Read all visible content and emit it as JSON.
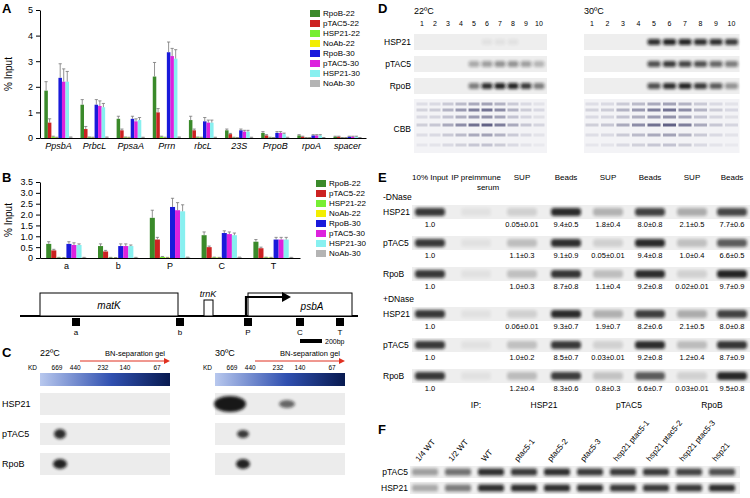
{
  "chart_data": [
    {
      "type": "bar",
      "ylabel": "% Input",
      "categories": [
        "PpsbA",
        "PrbcL",
        "PpsaA",
        "Prrn",
        "rbcL",
        "23S",
        "PrpoB",
        "rpoA",
        "spacer"
      ],
      "ylim": [
        0,
        5
      ],
      "yticks": [
        0,
        1,
        2,
        3,
        4,
        5
      ],
      "grid": false,
      "legend": "upper right",
      "series": [
        {
          "name": "RpoB-22",
          "color": "#3a8a2a",
          "values": [
            1.85,
            1.3,
            0.75,
            2.4,
            0.7,
            0.3,
            0.2,
            0.1,
            0.05
          ],
          "errors": [
            0.35,
            0.2,
            0.1,
            0.55,
            0.15,
            0.05,
            0.05,
            0.03,
            0.02
          ]
        },
        {
          "name": "pTAC5-22",
          "color": "#cc2222",
          "values": [
            0.6,
            0.35,
            0.3,
            1.0,
            0.3,
            0.15,
            0.1,
            0.05,
            0.05
          ],
          "errors": [
            0.15,
            0.1,
            0.05,
            0.15,
            0.05,
            0.03,
            0.03,
            0.02,
            0.02
          ]
        },
        {
          "name": "HSP21-22",
          "color": "#77ee33",
          "values": [
            0.05,
            0.03,
            0.03,
            0.05,
            0.03,
            0.02,
            0.02,
            0.01,
            0.01
          ],
          "errors": [
            0.02,
            0.01,
            0.01,
            0.02,
            0.01,
            0.01,
            0.01,
            0.01,
            0.01
          ]
        },
        {
          "name": "NoAb-22",
          "color": "#f2ee00",
          "values": [
            0.02,
            0.02,
            0.02,
            0.02,
            0.02,
            0.01,
            0.01,
            0.01,
            0.01
          ],
          "errors": [
            0.01,
            0.01,
            0.01,
            0.01,
            0.01,
            0.01,
            0.01,
            0.01,
            0.01
          ]
        },
        {
          "name": "RpoB-30",
          "color": "#1a1adb",
          "values": [
            2.35,
            1.3,
            0.75,
            3.35,
            0.65,
            0.3,
            0.2,
            0.1,
            0.05
          ],
          "errors": [
            0.55,
            0.2,
            0.1,
            0.4,
            0.15,
            0.05,
            0.05,
            0.03,
            0.02
          ]
        },
        {
          "name": "pTAC5-30",
          "color": "#dd22dd",
          "values": [
            2.2,
            1.25,
            0.65,
            3.2,
            0.6,
            0.25,
            0.2,
            0.1,
            0.05
          ],
          "errors": [
            0.5,
            0.2,
            0.1,
            0.3,
            0.1,
            0.05,
            0.05,
            0.03,
            0.02
          ]
        },
        {
          "name": "HSP21-30",
          "color": "#88f0f0",
          "values": [
            2.2,
            1.2,
            0.7,
            3.1,
            0.6,
            0.25,
            0.15,
            0.1,
            0.05
          ],
          "errors": [
            0.4,
            0.15,
            0.1,
            0.35,
            0.1,
            0.05,
            0.04,
            0.03,
            0.02
          ]
        },
        {
          "name": "NoAb-30",
          "color": "#b4b4b4",
          "values": [
            0.03,
            0.03,
            0.02,
            0.03,
            0.02,
            0.02,
            0.02,
            0.01,
            0.01
          ],
          "errors": [
            0.01,
            0.01,
            0.01,
            0.01,
            0.01,
            0.01,
            0.01,
            0.01,
            0.01
          ]
        }
      ]
    },
    {
      "type": "bar",
      "ylabel": "% Input",
      "categories": [
        "a",
        "b",
        "P",
        "C",
        "T"
      ],
      "ylim": [
        0,
        3.5
      ],
      "yticks": [
        0,
        0.5,
        {
          "value": 1,
          "label": "1.0"
        },
        1.5,
        {
          "value": 2,
          "label": "2.0"
        },
        2.5,
        {
          "value": 3,
          "label": "3.0"
        },
        3.5
      ],
      "grid": false,
      "legend": "upper right",
      "series": [
        {
          "name": "RpoB-22",
          "color": "#3a8a2a",
          "values": [
            0.65,
            0.55,
            1.85,
            1.05,
            0.75
          ],
          "errors": [
            0.1,
            0.1,
            0.35,
            0.15,
            0.1
          ]
        },
        {
          "name": "pTAC5-22",
          "color": "#cc2222",
          "values": [
            0.35,
            0.3,
            0.85,
            0.5,
            0.45
          ],
          "errors": [
            0.05,
            0.05,
            0.1,
            0.05,
            0.05
          ]
        },
        {
          "name": "HSP21-22",
          "color": "#77ee33",
          "values": [
            0.02,
            0.02,
            0.05,
            0.03,
            0.03
          ],
          "errors": [
            0.01,
            0.01,
            0.02,
            0.01,
            0.01
          ]
        },
        {
          "name": "NoAb-22",
          "color": "#f2ee00",
          "values": [
            0.01,
            0.01,
            0.02,
            0.02,
            0.02
          ],
          "errors": [
            0.01,
            0.01,
            0.01,
            0.01,
            0.01
          ]
        },
        {
          "name": "RpoB-30",
          "color": "#1a1adb",
          "values": [
            0.65,
            0.55,
            2.35,
            1.15,
            0.85
          ],
          "errors": [
            0.1,
            0.1,
            0.4,
            0.1,
            0.1
          ]
        },
        {
          "name": "pTAC5-30",
          "color": "#dd22dd",
          "values": [
            0.6,
            0.55,
            2.2,
            1.1,
            0.85
          ],
          "errors": [
            0.1,
            0.1,
            0.35,
            0.1,
            0.1
          ]
        },
        {
          "name": "HSP21-30",
          "color": "#88f0f0",
          "values": [
            0.6,
            0.55,
            2.15,
            1.05,
            0.85
          ],
          "errors": [
            0.05,
            0.05,
            0.3,
            0.1,
            0.1
          ]
        },
        {
          "name": "NoAb-30",
          "color": "#b4b4b4",
          "values": [
            0.02,
            0.02,
            0.03,
            0.03,
            0.02
          ],
          "errors": [
            0.01,
            0.01,
            0.01,
            0.01,
            0.01
          ]
        }
      ]
    }
  ],
  "panel_labels": [
    "A",
    "B",
    "C",
    "D",
    "E",
    "F"
  ],
  "gene_map": {
    "genes": [
      "matK",
      "trnK",
      "psbA"
    ],
    "regions": [
      "a",
      "b",
      "P",
      "C",
      "T"
    ],
    "scale_bar": "200bp"
  },
  "panel_c": {
    "conditions": [
      "22ºC",
      "30ºC"
    ],
    "gel_label": "BN-separation gel",
    "kd_label": "KD",
    "markers": [
      669,
      440,
      232,
      140,
      67
    ],
    "rows": [
      "HSP21",
      "pTAC5",
      "RpoB"
    ]
  },
  "panel_d": {
    "conditions": [
      "22ºC",
      "30ºC"
    ],
    "lanes": [
      1,
      2,
      3,
      4,
      5,
      6,
      7,
      8,
      9,
      10
    ],
    "rows": [
      "HSP21",
      "pTAC5",
      "RpoB",
      "CBB"
    ]
  },
  "panel_e": {
    "headers": [
      [
        "10% Input"
      ],
      [
        "IP preimmune",
        "serum"
      ],
      [
        "SUP"
      ],
      [
        "Beads"
      ],
      [
        "SUP"
      ],
      [
        "Beads"
      ],
      [
        "SUP"
      ],
      [
        "Beads"
      ]
    ],
    "sections": [
      {
        "label": "-DNase",
        "rows": [
          {
            "name": "HSP21",
            "values": [
              "1.0",
              null,
              "0.05±0.01",
              "9.4±0.5",
              "1.8±0.4",
              "8.0±0.8",
              "2.1±0.5",
              "7.7±0.6"
            ]
          },
          {
            "name": "pTAC5",
            "values": [
              "1.0",
              null,
              "1.1±0.3",
              "9.1±0.9",
              "0.05±0.01",
              "9.4±0.8",
              "1.0±0.4",
              "6.6±0.5"
            ]
          },
          {
            "name": "RpoB",
            "values": [
              "1.0",
              null,
              "1.0±0.3",
              "8.7±0.8",
              "1.1±0.4",
              "9.2±0.8",
              "0.02±0.01",
              "9.7±0.9"
            ]
          }
        ]
      },
      {
        "label": "+DNase",
        "rows": [
          {
            "name": "HSP21",
            "values": [
              "1.0",
              null,
              "0.06±0.01",
              "9.3±0.7",
              "1.9±0.7",
              "8.2±0.6",
              "2.1±0.5",
              "8.0±0.8"
            ]
          },
          {
            "name": "pTAC5",
            "values": [
              "1.0",
              null,
              "1.0±0.2",
              "8.5±0.7",
              "0.03±0.01",
              "9.2±0.8",
              "1.2±0.4",
              "8.7±0.9"
            ]
          },
          {
            "name": "RpoB",
            "values": [
              "1.0",
              null,
              "1.2±0.4",
              "8.3±0.6",
              "0.8±0.3",
              "6.6±0.7",
              "0.03±0.01",
              "9.5±0.8"
            ]
          }
        ]
      }
    ],
    "ip_label": "IP:",
    "ip_targets": [
      "HSP21",
      "pTAC5",
      "RpoB"
    ]
  },
  "panel_f": {
    "lanes": [
      "1/4 WT",
      "1/2 WT",
      "WT",
      "ptac5-1",
      "ptac5-2",
      "ptac5-3",
      "hsp21 ptac5-1",
      "hsp21 ptac5-2",
      "hsp21 ptac5-3",
      "hsp21"
    ],
    "rows": [
      "pTAC5",
      "HSP21"
    ]
  }
}
